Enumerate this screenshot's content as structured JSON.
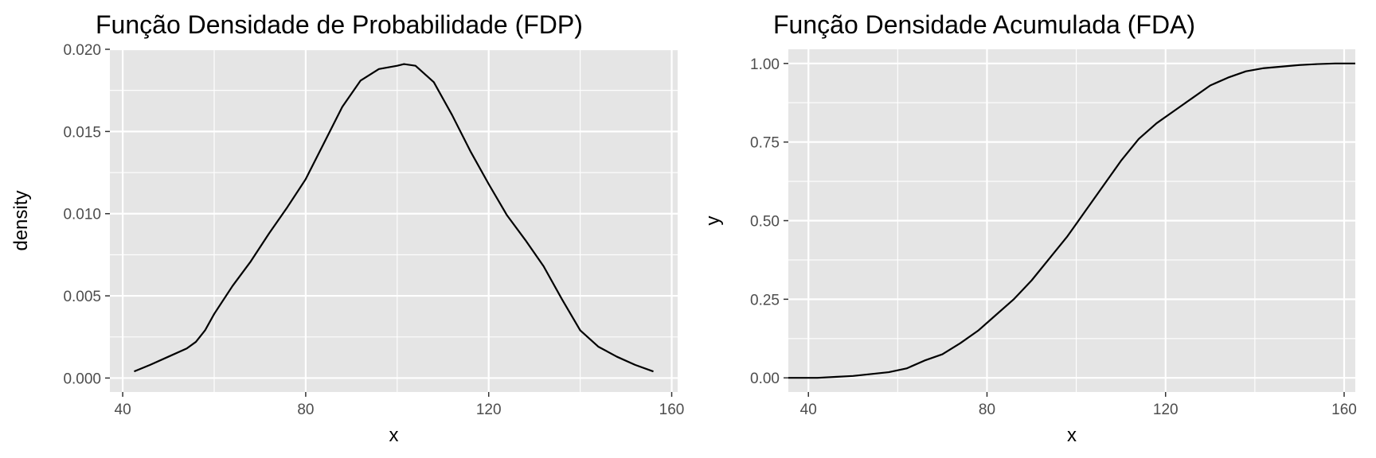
{
  "colors": {
    "panel": "#e5e5e5",
    "grid": "#ffffff",
    "line": "#000000",
    "tick_text": "#4d4d4d"
  },
  "chart_data": [
    {
      "type": "line",
      "title": "Função Densidade de Probabilidade (FDP)",
      "xlabel": "x",
      "ylabel": "density",
      "xlim": [
        37.2,
        161.3
      ],
      "ylim": [
        -0.00085,
        0.02
      ],
      "xticks": [
        40,
        80,
        120,
        160
      ],
      "yticks": [
        0.0,
        0.005,
        0.01,
        0.015,
        0.02
      ],
      "xtick_labels": [
        "40",
        "80",
        "120",
        "160"
      ],
      "ytick_labels": [
        "0.000",
        "0.005",
        "0.010",
        "0.015",
        "0.020"
      ],
      "grid": true,
      "series": [
        {
          "x": [
            42.5,
            46,
            50,
            54,
            56,
            58,
            60,
            64,
            68,
            72,
            76,
            80,
            84,
            88,
            92,
            96,
            100,
            101.5,
            104,
            108,
            112,
            116,
            120,
            124,
            128,
            132,
            136,
            140,
            144,
            148,
            152,
            156
          ],
          "y": [
            0.0004,
            0.0008,
            0.0013,
            0.0018,
            0.0022,
            0.0029,
            0.0039,
            0.0056,
            0.0071,
            0.0088,
            0.0104,
            0.0121,
            0.0143,
            0.0165,
            0.0181,
            0.0188,
            0.019,
            0.0191,
            0.019,
            0.018,
            0.016,
            0.0138,
            0.0118,
            0.0099,
            0.0084,
            0.0068,
            0.0048,
            0.0029,
            0.0019,
            0.0013,
            0.0008,
            0.0004
          ]
        }
      ]
    },
    {
      "type": "line",
      "title": "Função Densidade Acumulada (FDA)",
      "xlabel": "x",
      "ylabel": "y",
      "xlim": [
        35.5,
        162.5
      ],
      "ylim": [
        -0.045,
        1.045
      ],
      "xticks": [
        40,
        80,
        120,
        160
      ],
      "yticks": [
        0.0,
        0.25,
        0.5,
        0.75,
        1.0
      ],
      "xtick_labels": [
        "40",
        "80",
        "120",
        "160"
      ],
      "ytick_labels": [
        "0.00",
        "0.25",
        "0.50",
        "0.75",
        "1.00"
      ],
      "grid": true,
      "series": [
        {
          "x": [
            35.5,
            42,
            46,
            50,
            54,
            58,
            62,
            66,
            70,
            74,
            78,
            82,
            86,
            90,
            94,
            98,
            100,
            102,
            106,
            110,
            114,
            118,
            122,
            126,
            130,
            134,
            138,
            142,
            146,
            150,
            154,
            158,
            162.5
          ],
          "y": [
            0.0,
            0.0,
            0.003,
            0.006,
            0.012,
            0.018,
            0.03,
            0.055,
            0.075,
            0.11,
            0.15,
            0.2,
            0.25,
            0.31,
            0.38,
            0.45,
            0.49,
            0.53,
            0.61,
            0.69,
            0.76,
            0.81,
            0.85,
            0.89,
            0.93,
            0.955,
            0.975,
            0.985,
            0.99,
            0.995,
            0.998,
            1.0,
            1.0
          ]
        }
      ]
    }
  ]
}
